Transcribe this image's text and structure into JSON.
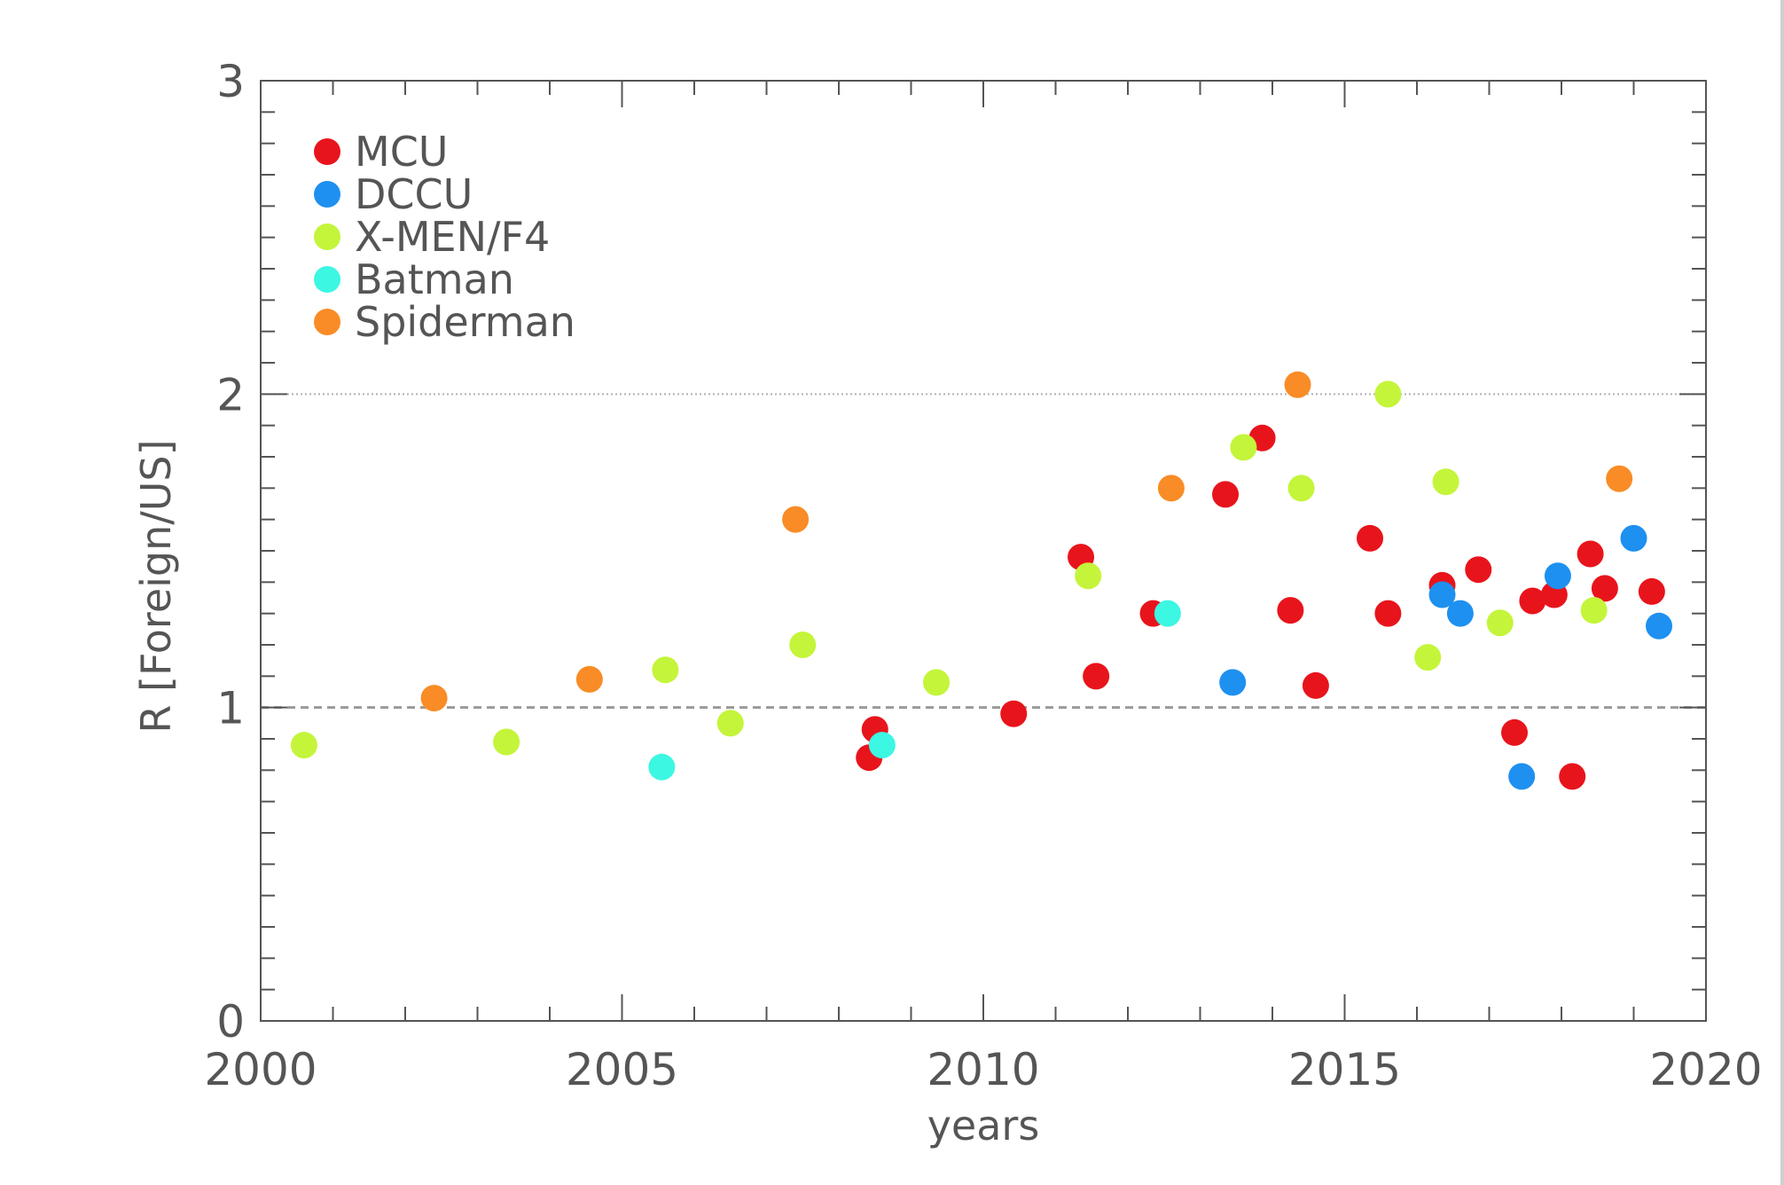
{
  "chart_data": {
    "type": "scatter",
    "xlabel": "years",
    "ylabel": "R [Foreign/US]",
    "xlim": [
      2000,
      2020
    ],
    "ylim": [
      0,
      3
    ],
    "x_ticks": [
      2000,
      2005,
      2010,
      2015,
      2020
    ],
    "y_ticks": [
      0,
      1,
      2,
      3
    ],
    "reference_lines": [
      {
        "y": 1,
        "style": "dashed"
      },
      {
        "y": 2,
        "style": "dotted"
      }
    ],
    "legend_position": "top-left",
    "series": [
      {
        "name": "MCU",
        "color": "#e8141c",
        "points": [
          {
            "x": 2008.42,
            "y": 0.84
          },
          {
            "x": 2008.5,
            "y": 0.93
          },
          {
            "x": 2010.42,
            "y": 0.98
          },
          {
            "x": 2011.35,
            "y": 1.48
          },
          {
            "x": 2011.56,
            "y": 1.1
          },
          {
            "x": 2012.35,
            "y": 1.3
          },
          {
            "x": 2013.35,
            "y": 1.68
          },
          {
            "x": 2013.86,
            "y": 1.86
          },
          {
            "x": 2014.25,
            "y": 1.31
          },
          {
            "x": 2014.6,
            "y": 1.07
          },
          {
            "x": 2015.35,
            "y": 1.54
          },
          {
            "x": 2015.6,
            "y": 1.3
          },
          {
            "x": 2016.35,
            "y": 1.39
          },
          {
            "x": 2016.85,
            "y": 1.44
          },
          {
            "x": 2017.35,
            "y": 0.92
          },
          {
            "x": 2017.6,
            "y": 1.34
          },
          {
            "x": 2017.9,
            "y": 1.36
          },
          {
            "x": 2018.15,
            "y": 0.78
          },
          {
            "x": 2018.4,
            "y": 1.49
          },
          {
            "x": 2018.6,
            "y": 1.38
          },
          {
            "x": 2019.25,
            "y": 1.37
          }
        ]
      },
      {
        "name": "DCCU",
        "color": "#1e90f0",
        "points": [
          {
            "x": 2013.45,
            "y": 1.08
          },
          {
            "x": 2016.35,
            "y": 1.36
          },
          {
            "x": 2016.6,
            "y": 1.3
          },
          {
            "x": 2017.45,
            "y": 0.78
          },
          {
            "x": 2017.95,
            "y": 1.42
          },
          {
            "x": 2019.0,
            "y": 1.54
          },
          {
            "x": 2019.35,
            "y": 1.26
          }
        ]
      },
      {
        "name": "X-MEN/F4",
        "color": "#c4f53a",
        "points": [
          {
            "x": 2000.6,
            "y": 0.88
          },
          {
            "x": 2003.4,
            "y": 0.89
          },
          {
            "x": 2005.6,
            "y": 1.12
          },
          {
            "x": 2006.5,
            "y": 0.95
          },
          {
            "x": 2007.5,
            "y": 1.2
          },
          {
            "x": 2009.35,
            "y": 1.08
          },
          {
            "x": 2011.45,
            "y": 1.42
          },
          {
            "x": 2013.6,
            "y": 1.83
          },
          {
            "x": 2014.4,
            "y": 1.7
          },
          {
            "x": 2015.6,
            "y": 2.0
          },
          {
            "x": 2016.15,
            "y": 1.16
          },
          {
            "x": 2016.4,
            "y": 1.72
          },
          {
            "x": 2017.15,
            "y": 1.27
          },
          {
            "x": 2018.45,
            "y": 1.31
          }
        ]
      },
      {
        "name": "Batman",
        "color": "#3cf7e2",
        "points": [
          {
            "x": 2005.55,
            "y": 0.81
          },
          {
            "x": 2008.6,
            "y": 0.88
          },
          {
            "x": 2012.55,
            "y": 1.3
          }
        ]
      },
      {
        "name": "Spiderman",
        "color": "#f98c26",
        "points": [
          {
            "x": 2002.4,
            "y": 1.03
          },
          {
            "x": 2004.55,
            "y": 1.09
          },
          {
            "x": 2007.4,
            "y": 1.6
          },
          {
            "x": 2012.6,
            "y": 1.7
          },
          {
            "x": 2014.35,
            "y": 2.03
          },
          {
            "x": 2018.8,
            "y": 1.73
          }
        ]
      }
    ]
  }
}
